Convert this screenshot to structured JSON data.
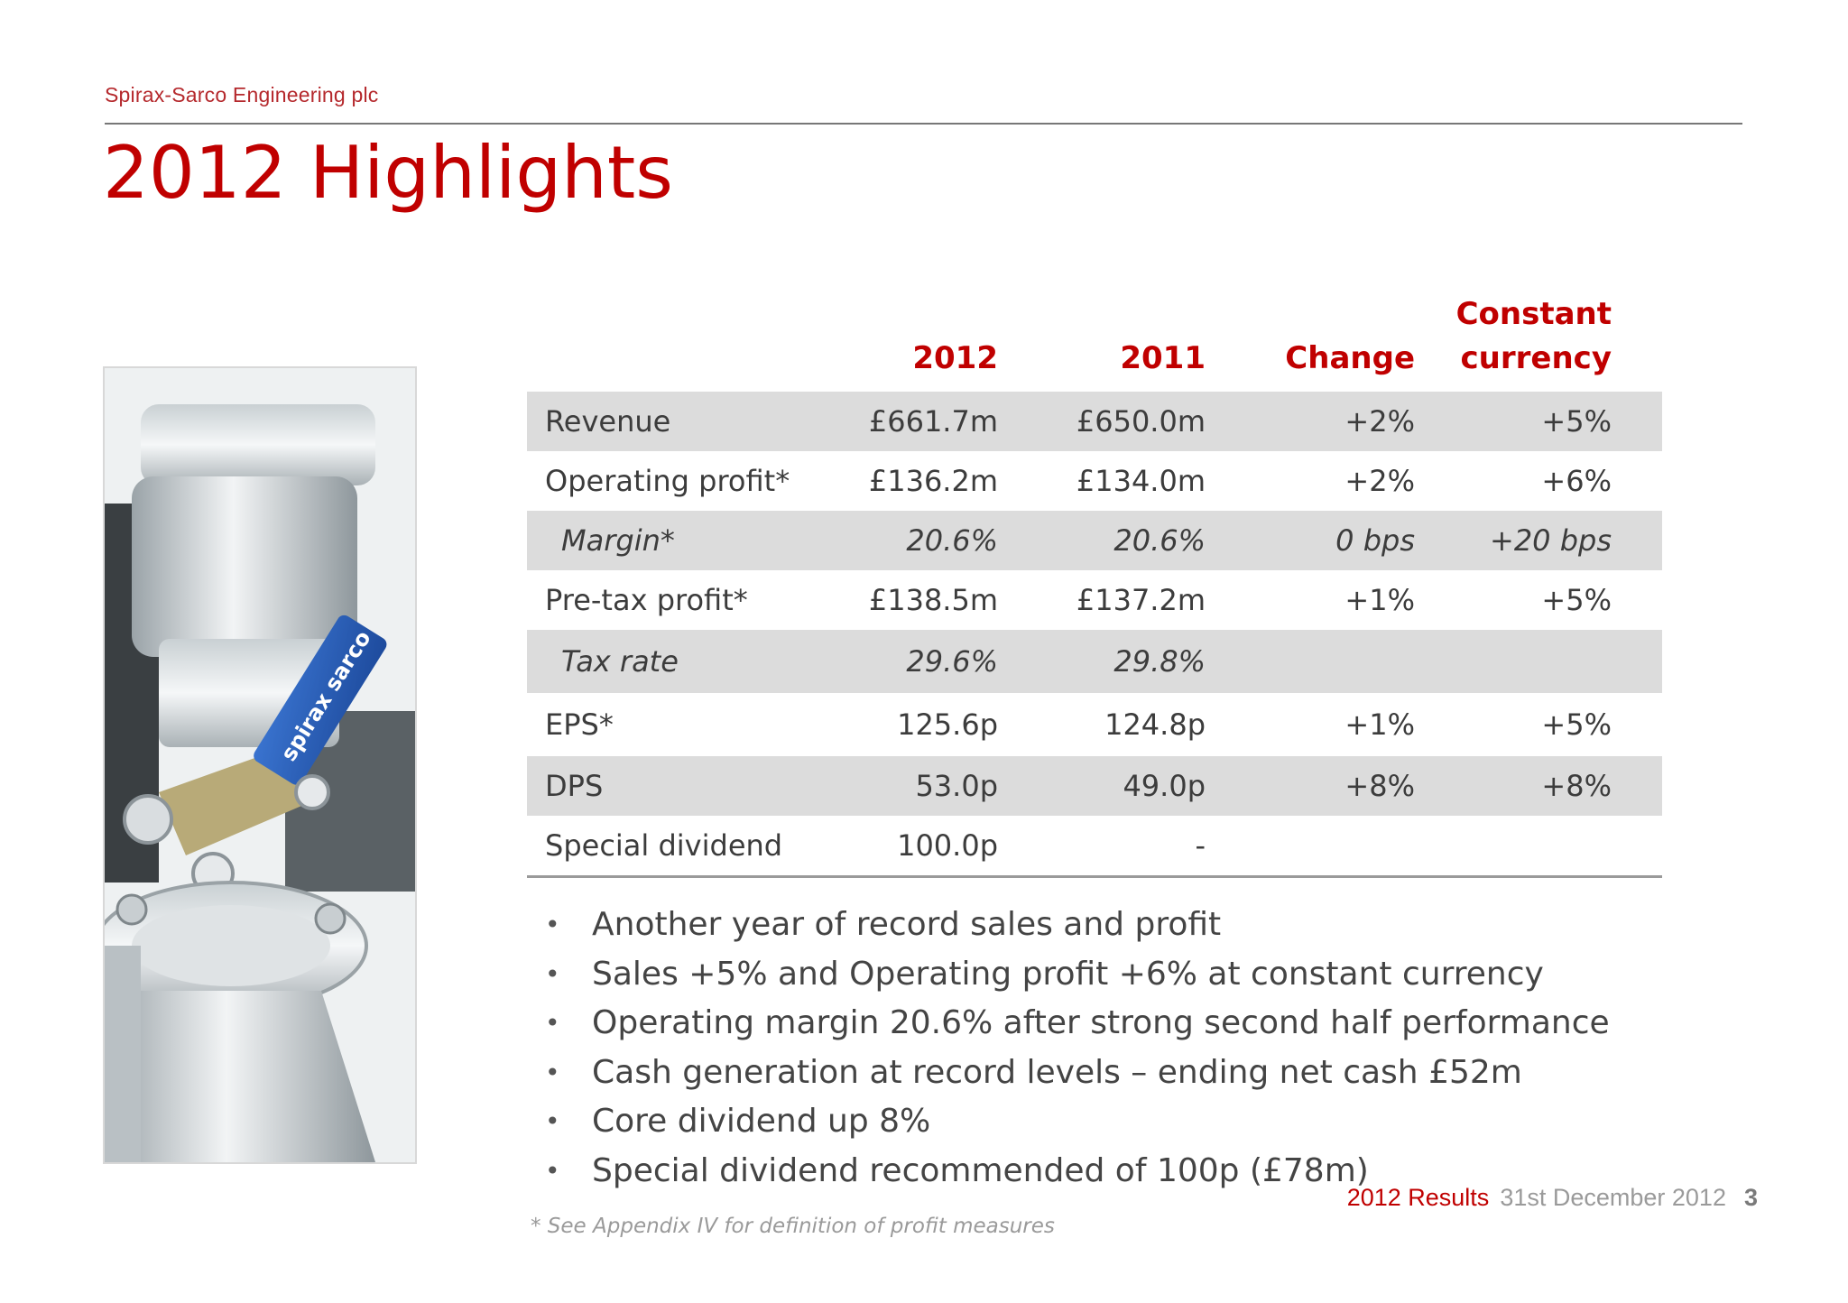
{
  "header": {
    "company": "Spirax-Sarco Engineering plc",
    "title": "2012 Highlights"
  },
  "table": {
    "columns": [
      "2012",
      "2011",
      "Change",
      "Constant currency"
    ],
    "rows": [
      {
        "label": "Revenue",
        "v2012": "£661.7m",
        "v2011": "£650.0m",
        "change": "+2%",
        "cc": "+5%"
      },
      {
        "label": "Operating profit*",
        "v2012": "£136.2m",
        "v2011": "£134.0m",
        "change": "+2%",
        "cc": "+6%"
      },
      {
        "label": "Margin*",
        "v2012": "20.6%",
        "v2011": "20.6%",
        "change": "0 bps",
        "cc": "+20 bps"
      },
      {
        "label": "Pre-tax profit*",
        "v2012": "£138.5m",
        "v2011": "£137.2m",
        "change": "+1%",
        "cc": "+5%"
      },
      {
        "label": "Tax rate",
        "v2012": "29.6%",
        "v2011": "29.8%",
        "change": "",
        "cc": ""
      },
      {
        "label": "EPS*",
        "v2012": "125.6p",
        "v2011": "124.8p",
        "change": "+1%",
        "cc": "+5%"
      },
      {
        "label": "DPS",
        "v2012": "53.0p",
        "v2011": "49.0p",
        "change": "+8%",
        "cc": "+8%"
      },
      {
        "label": "Special dividend",
        "v2012": "100.0p",
        "v2011": "-",
        "change": "",
        "cc": ""
      }
    ]
  },
  "bullets": [
    "Another year of record sales and profit",
    "Sales +5%  and Operating profit +6% at constant currency",
    "Operating margin 20.6% after strong second half performance",
    "Cash generation at record levels – ending net cash £52m",
    "Core dividend up 8%",
    "Special dividend recommended of 100p (£78m)"
  ],
  "bullet_glyph": "•",
  "footnote": "* See Appendix IV for definition of profit measures",
  "footer": {
    "report": "2012 Results",
    "date": "31st December 2012",
    "page": "3"
  },
  "photo": {
    "brand_label": "spirax sarco"
  },
  "colors": {
    "accent": "#c00000",
    "table_shade": "#dcdcdc",
    "text": "#444444"
  }
}
